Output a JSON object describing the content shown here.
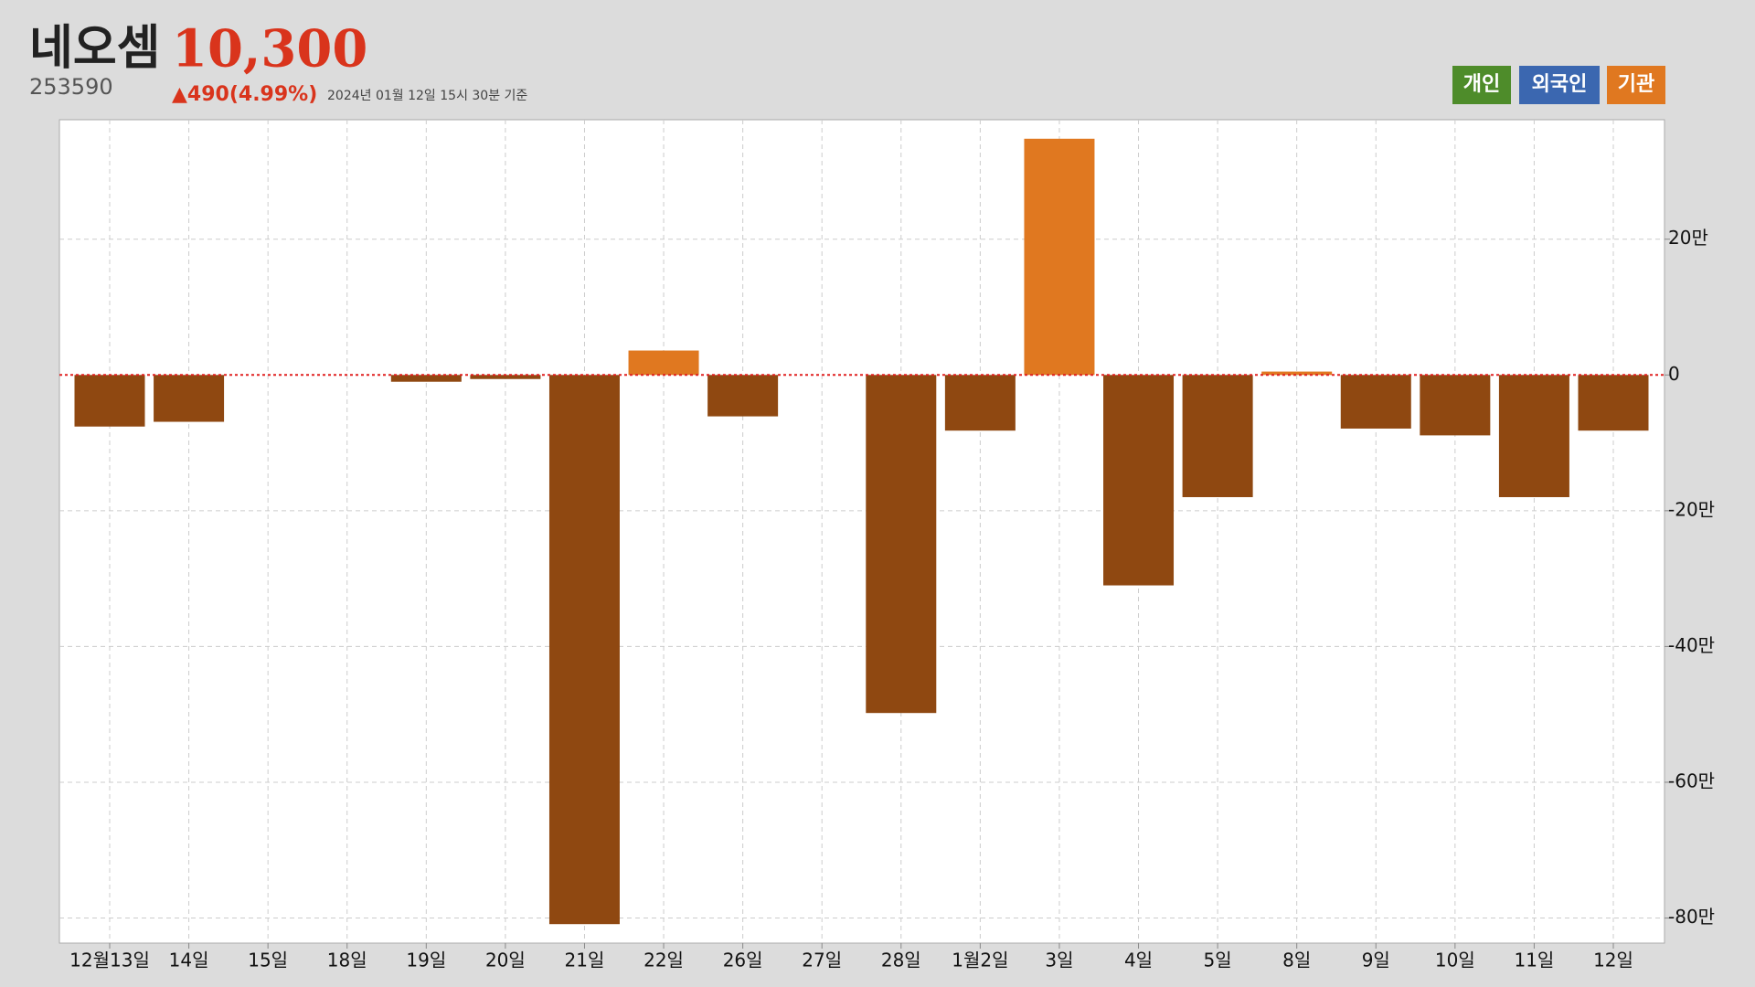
{
  "chart_data": {
    "type": "bar",
    "title": "네오셈",
    "price": "10,300",
    "code": "253590",
    "change": "▲490(4.99%)",
    "timestamp": "2024년 01월 12일 15시 30분 기준",
    "legend": [
      {
        "name": "개인",
        "color": "#4e8c2a"
      },
      {
        "name": "외국인",
        "color": "#3b67b0"
      },
      {
        "name": "기관",
        "color": "#e07820"
      }
    ],
    "categories": [
      "12월13일",
      "14일",
      "15일",
      "18일",
      "19일",
      "20일",
      "21일",
      "22일",
      "26일",
      "27일",
      "28일",
      "1월2일",
      "3일",
      "4일",
      "5일",
      "8일",
      "9일",
      "10일",
      "11일",
      "12일"
    ],
    "values": [
      -7.6,
      -6.9,
      0,
      0,
      -1.0,
      -0.6,
      -80.9,
      3.6,
      -6.1,
      0,
      -49.8,
      -8.2,
      34.8,
      -31.0,
      -18.0,
      0.5,
      -7.9,
      -8.9,
      -18.0,
      -8.2
    ],
    "color_positive": "#e07820",
    "color_negative": "#8f4811",
    "ylim": [
      -83.7,
      37.6
    ],
    "yticks": [
      {
        "value": 20,
        "label": "20만"
      },
      0,
      {
        "value": -20,
        "label": "-20만"
      },
      {
        "value": -40,
        "label": "-40만"
      },
      {
        "value": -60,
        "label": "-60만"
      },
      {
        "value": -80,
        "label": "-80만"
      }
    ],
    "grid": true
  }
}
